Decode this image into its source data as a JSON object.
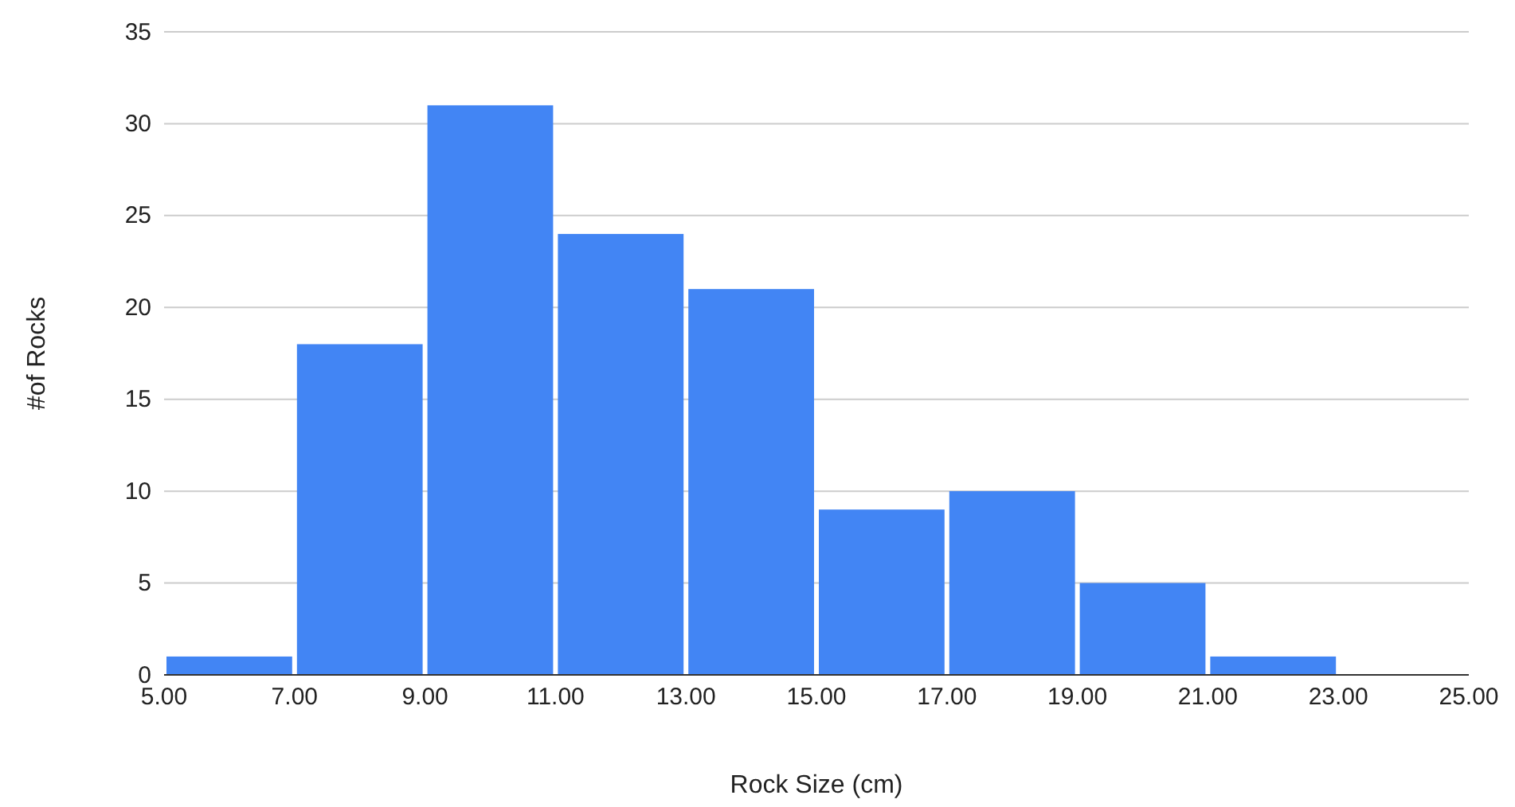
{
  "chart_data": {
    "type": "histogram",
    "xlabel": "Rock Size (cm)",
    "ylabel": "#of Rocks",
    "bins": [
      5,
      7,
      9,
      11,
      13,
      15,
      17,
      19,
      21,
      23,
      25
    ],
    "values": [
      1,
      18,
      31,
      24,
      21,
      9,
      10,
      5,
      1,
      0
    ],
    "color": "#4285f4",
    "xlim": [
      5,
      25
    ],
    "xticks": [
      {
        "value": 5,
        "label": "5.00"
      },
      {
        "value": 7,
        "label": "7.00"
      },
      {
        "value": 9,
        "label": "9.00"
      },
      {
        "value": 11,
        "label": "11.00"
      },
      {
        "value": 13,
        "label": "13.00"
      },
      {
        "value": 15,
        "label": "15.00"
      },
      {
        "value": 17,
        "label": "17.00"
      },
      {
        "value": 19,
        "label": "19.00"
      },
      {
        "value": 21,
        "label": "21.00"
      },
      {
        "value": 23,
        "label": "23.00"
      },
      {
        "value": 25,
        "label": "25.00"
      }
    ],
    "ylim": [
      0,
      35
    ],
    "yticks": [
      0,
      5,
      10,
      15,
      20,
      25,
      30,
      35
    ],
    "grid": "y"
  }
}
